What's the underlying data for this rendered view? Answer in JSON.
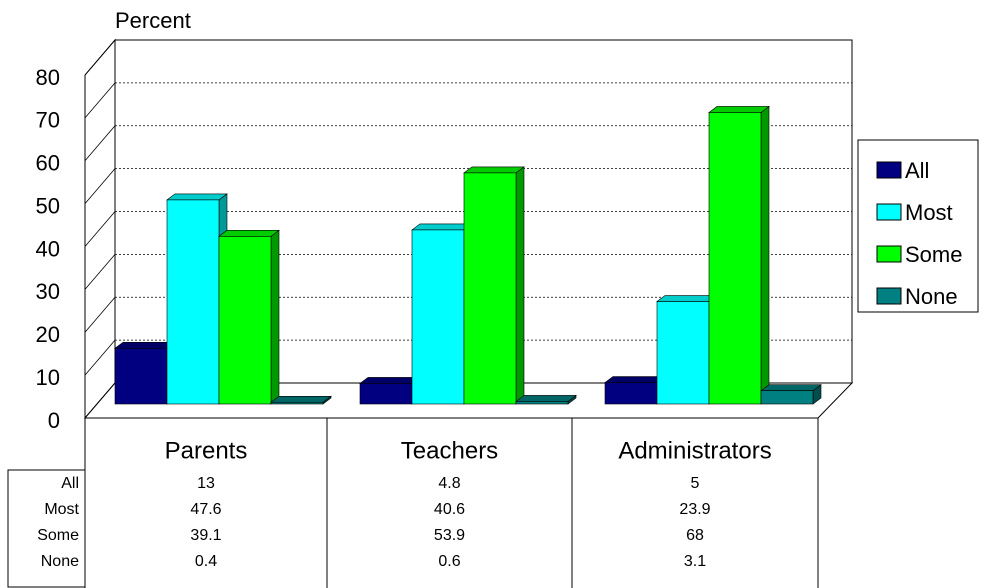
{
  "chart_data": {
    "type": "bar3d",
    "y_label": "Percent",
    "categories": [
      "Parents",
      "Teachers",
      "Administrators"
    ],
    "series": [
      {
        "name": "All",
        "color": "#000080",
        "values": [
          13,
          4.8,
          5
        ]
      },
      {
        "name": "Most",
        "color": "#00ffff",
        "values": [
          47.6,
          40.6,
          23.9
        ]
      },
      {
        "name": "Some",
        "color": "#00ff00",
        "values": [
          39.1,
          53.9,
          68
        ]
      },
      {
        "name": "None",
        "color": "#008080",
        "values": [
          0.4,
          0.6,
          3.1
        ]
      }
    ],
    "ylim": [
      0,
      80
    ],
    "yticks": [
      0,
      10,
      20,
      30,
      40,
      50,
      60,
      70,
      80
    ],
    "grid": true,
    "legend": "right",
    "data_table": true
  }
}
